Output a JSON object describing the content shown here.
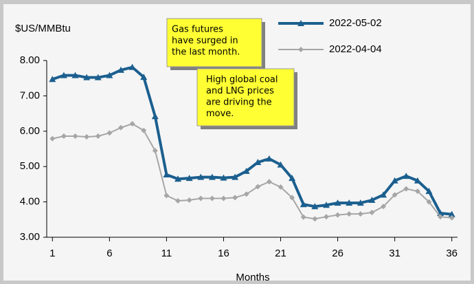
{
  "chart_data": {
    "type": "line",
    "y_label": "$US/MMBtu",
    "x_label": "Months",
    "x": [
      1,
      2,
      3,
      4,
      5,
      6,
      7,
      8,
      9,
      10,
      11,
      12,
      13,
      14,
      15,
      16,
      17,
      18,
      19,
      20,
      21,
      22,
      23,
      24,
      25,
      26,
      27,
      28,
      29,
      30,
      31,
      32,
      33,
      34,
      35,
      36
    ],
    "series": [
      {
        "name": "2022-05-02",
        "color": "#1b5f8f",
        "marker": "triangle",
        "values": [
          7.47,
          7.58,
          7.58,
          7.52,
          7.52,
          7.58,
          7.73,
          7.81,
          7.53,
          6.42,
          4.77,
          4.65,
          4.67,
          4.7,
          4.7,
          4.68,
          4.7,
          4.87,
          5.12,
          5.22,
          5.05,
          4.67,
          3.93,
          3.87,
          3.91,
          3.97,
          3.97,
          3.97,
          4.05,
          4.2,
          4.6,
          4.73,
          4.6,
          4.3,
          3.68,
          3.65
        ]
      },
      {
        "name": "2022-04-04",
        "color": "#a6a6a6",
        "marker": "diamond",
        "values": [
          5.79,
          5.86,
          5.86,
          5.84,
          5.86,
          5.95,
          6.1,
          6.21,
          6.02,
          5.45,
          4.18,
          4.03,
          4.05,
          4.1,
          4.1,
          4.1,
          4.12,
          4.22,
          4.43,
          4.57,
          4.42,
          4.12,
          3.57,
          3.52,
          3.58,
          3.63,
          3.66,
          3.66,
          3.7,
          3.87,
          4.2,
          4.37,
          4.3,
          4.0,
          3.58,
          3.55
        ]
      }
    ],
    "xlim": [
      0.5,
      36.5
    ],
    "xticks": [
      1,
      6,
      11,
      16,
      21,
      26,
      31,
      36
    ],
    "ylim": [
      3,
      8
    ],
    "yticks": [
      {
        "value": 3,
        "label": "3.00"
      },
      {
        "value": 4,
        "label": "4.00"
      },
      {
        "value": 5,
        "label": "5.00"
      },
      {
        "value": 6,
        "label": "6.00"
      },
      {
        "value": 7,
        "label": "7.00"
      },
      {
        "value": 8,
        "label": "8.00"
      }
    ],
    "legend": "upper right",
    "grid": false,
    "annotations": [
      [
        "Gas futures",
        "have surged in",
        "the last month."
      ],
      [
        "High global coal",
        "and LNG prices",
        "are driving the",
        "move."
      ]
    ]
  }
}
